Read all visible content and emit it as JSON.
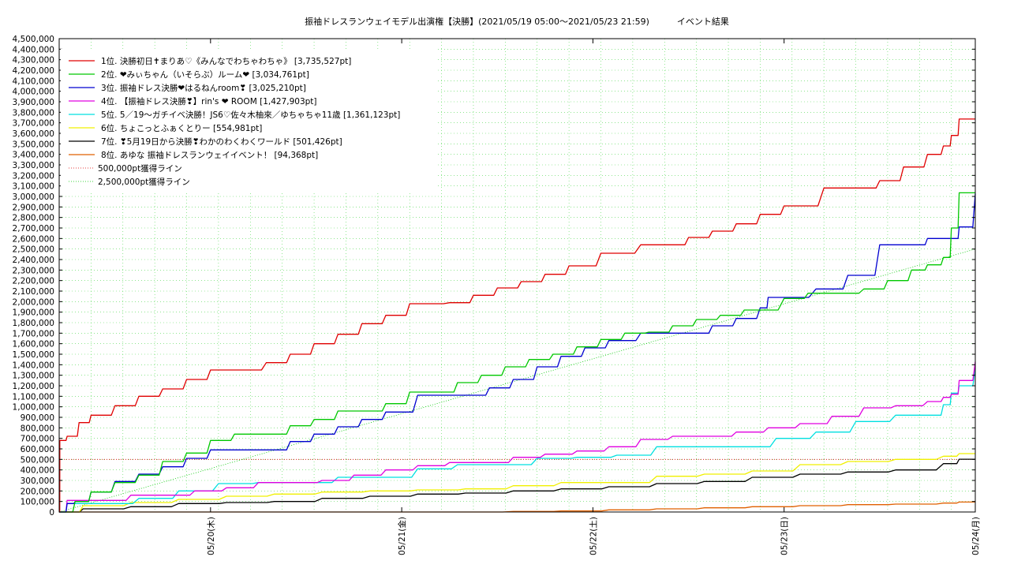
{
  "chart_data": {
    "type": "line",
    "title": "振袖ドレスランウェイモデル出演権【決勝】(2021/05/19 05:00〜2021/05/23 21:59)          イベント結果",
    "xlabel": "",
    "ylabel": "",
    "x_range": [
      "2021/05/19 05:00",
      "2021/05/24 00:00"
    ],
    "ylim": [
      0,
      4500000
    ],
    "y_ticks": [
      "0",
      "100,000",
      "200,000",
      "300,000",
      "400,000",
      "500,000",
      "600,000",
      "700,000",
      "800,000",
      "900,000",
      "1,000,000",
      "1,100,000",
      "1,200,000",
      "1,300,000",
      "1,400,000",
      "1,500,000",
      "1,600,000",
      "1,700,000",
      "1,800,000",
      "1,900,000",
      "2,000,000",
      "2,100,000",
      "2,200,000",
      "2,300,000",
      "2,400,000",
      "2,500,000",
      "2,600,000",
      "2,700,000",
      "2,800,000",
      "2,900,000",
      "3,000,000",
      "3,100,000",
      "3,200,000",
      "3,300,000",
      "3,400,000",
      "3,500,000",
      "3,600,000",
      "3,700,000",
      "3,800,000",
      "3,900,000",
      "4,000,000",
      "4,100,000",
      "4,200,000",
      "4,300,000",
      "4,400,000",
      "4,500,000"
    ],
    "x_ticks": [
      "05/20(木)",
      "05/21(金)",
      "05/22(土)",
      "05/23(日)",
      "05/24(月)"
    ],
    "grid": true,
    "legend_position": "top-left",
    "series": [
      {
        "name": "1位. 決勝初日✝まりあ♡《みんなでわちゃわちゃ》 [3,735,527pt]",
        "color": "#e00000",
        "x": [
          "05/19 05:00",
          "05/19 05:05",
          "05/19 06:00",
          "05/19 07:30",
          "05/19 09:00",
          "05/19 12:00",
          "05/19 15:00",
          "05/19 18:00",
          "05/19 21:00",
          "05/20 00:00",
          "05/20 03:00",
          "05/20 07:00",
          "05/20 10:00",
          "05/20 13:00",
          "05/20 16:00",
          "05/20 19:00",
          "05/20 22:00",
          "05/21 01:00",
          "05/21 06:00",
          "05/21 09:00",
          "05/21 12:00",
          "05/21 15:00",
          "05/21 18:00",
          "05/21 21:00",
          "05/22 01:00",
          "05/22 06:00",
          "05/22 09:00",
          "05/22 12:00",
          "05/22 15:00",
          "05/22 18:00",
          "05/22 21:00",
          "05/23 00:00",
          "05/23 05:00",
          "05/23 09:00",
          "05/23 12:00",
          "05/23 15:00",
          "05/23 18:00",
          "05/23 20:00",
          "05/23 21:00",
          "05/23 21:59",
          "05/24 00:00"
        ],
        "y": [
          0,
          680000,
          720000,
          850000,
          920000,
          1010000,
          1100000,
          1170000,
          1260000,
          1350000,
          1350000,
          1420000,
          1500000,
          1600000,
          1690000,
          1790000,
          1870000,
          1980000,
          1990000,
          2060000,
          2130000,
          2190000,
          2260000,
          2340000,
          2460000,
          2540000,
          2540000,
          2610000,
          2670000,
          2740000,
          2830000,
          2910000,
          3080000,
          3080000,
          3150000,
          3280000,
          3400000,
          3480000,
          3580000,
          3735527,
          3735527
        ]
      },
      {
        "name": "2位. ❤みぃちゃん（いそらぶ）ルーム❤ [3,034,761pt]",
        "color": "#00c800",
        "x": [
          "05/19 05:00",
          "05/19 07:00",
          "05/19 09:00",
          "05/19 12:00",
          "05/19 15:00",
          "05/19 18:00",
          "05/19 21:00",
          "05/20 00:00",
          "05/20 03:00",
          "05/20 07:00",
          "05/20 10:00",
          "05/20 13:00",
          "05/20 16:00",
          "05/20 19:00",
          "05/20 22:00",
          "05/21 01:00",
          "05/21 04:00",
          "05/21 07:00",
          "05/21 10:00",
          "05/21 13:00",
          "05/21 16:00",
          "05/21 19:00",
          "05/21 22:00",
          "05/22 01:00",
          "05/22 04:00",
          "05/22 07:00",
          "05/22 10:00",
          "05/22 13:00",
          "05/22 16:00",
          "05/22 19:00",
          "05/23 00:00",
          "05/23 03:00",
          "05/23 06:00",
          "05/23 10:00",
          "05/23 13:00",
          "05/23 16:00",
          "05/23 18:00",
          "05/23 20:00",
          "05/23 21:00",
          "05/23 21:59",
          "05/24 00:00"
        ],
        "y": [
          0,
          100000,
          190000,
          280000,
          350000,
          480000,
          560000,
          680000,
          740000,
          740000,
          820000,
          880000,
          960000,
          960000,
          1030000,
          1140000,
          1140000,
          1230000,
          1300000,
          1380000,
          1450000,
          1500000,
          1570000,
          1640000,
          1700000,
          1710000,
          1770000,
          1830000,
          1870000,
          1920000,
          2030000,
          2080000,
          2080000,
          2120000,
          2200000,
          2300000,
          2350000,
          2420000,
          2700000,
          3034761,
          3034761
        ]
      },
      {
        "name": "3位. 振袖ドレス決勝❤はるねんroom❣ [3,025,210pt]",
        "color": "#0000d0",
        "x": [
          "05/19 05:00",
          "05/19 06:00",
          "05/19 07:00",
          "05/19 09:00",
          "05/19 12:00",
          "05/19 15:00",
          "05/19 18:00",
          "05/19 21:00",
          "05/20 00:00",
          "05/20 03:00",
          "05/20 07:00",
          "05/20 10:00",
          "05/20 13:00",
          "05/20 16:00",
          "05/20 19:00",
          "05/20 22:00",
          "05/21 02:00",
          "05/21 05:00",
          "05/21 08:00",
          "05/21 11:00",
          "05/21 14:00",
          "05/21 17:00",
          "05/21 20:00",
          "05/21 23:00",
          "05/22 02:00",
          "05/22 06:00",
          "05/22 09:00",
          "05/22 12:00",
          "05/22 15:00",
          "05/22 18:00",
          "05/22 21:00",
          "05/22 22:00",
          "05/23 04:00",
          "05/23 08:00",
          "05/23 12:00",
          "05/23 16:00",
          "05/23 18:00",
          "05/23 20:00",
          "05/23 21:00",
          "05/23 21:59",
          "05/24 00:00"
        ],
        "y": [
          0,
          80000,
          100000,
          190000,
          290000,
          360000,
          430000,
          510000,
          590000,
          590000,
          590000,
          670000,
          740000,
          810000,
          880000,
          950000,
          1110000,
          1110000,
          1110000,
          1180000,
          1260000,
          1380000,
          1480000,
          1560000,
          1630000,
          1700000,
          1700000,
          1700000,
          1770000,
          1840000,
          1940000,
          2040000,
          2120000,
          2250000,
          2540000,
          2540000,
          2600000,
          2600000,
          2600000,
          2710000,
          3025210
        ]
      },
      {
        "name": "4位. 【振袖ドレス決勝❣】rin's ❤ ROOM [1,427,903pt]",
        "color": "#e000e0",
        "x": [
          "05/19 05:00",
          "05/19 06:00",
          "05/19 10:00",
          "05/19 14:00",
          "05/19 18:00",
          "05/19 22:00",
          "05/20 02:00",
          "05/20 06:00",
          "05/20 10:00",
          "05/20 14:00",
          "05/20 18:00",
          "05/20 22:00",
          "05/21 02:00",
          "05/21 06:00",
          "05/21 10:00",
          "05/21 14:00",
          "05/21 18:00",
          "05/21 22:00",
          "05/22 02:00",
          "05/22 06:00",
          "05/22 10:00",
          "05/22 14:00",
          "05/22 18:00",
          "05/22 22:00",
          "05/23 02:00",
          "05/23 06:00",
          "05/23 10:00",
          "05/23 14:00",
          "05/23 18:00",
          "05/23 20:00",
          "05/23 21:00",
          "05/23 21:59",
          "05/24 00:00"
        ],
        "y": [
          0,
          110000,
          110000,
          160000,
          160000,
          200000,
          230000,
          280000,
          280000,
          300000,
          350000,
          400000,
          440000,
          470000,
          470000,
          520000,
          550000,
          580000,
          620000,
          690000,
          720000,
          720000,
          760000,
          800000,
          840000,
          910000,
          990000,
          1010000,
          1050000,
          1090000,
          1120000,
          1250000,
          1427903
        ]
      },
      {
        "name": "5位. 5／19〜ガチイベ決勝！JS6♡佐々木柚來／ゆちゃちゃ11歳 [1,361,123pt]",
        "color": "#00e0e0",
        "x": [
          "05/19 05:00",
          "05/19 06:00",
          "05/19 10:00",
          "05/19 15:00",
          "05/19 20:00",
          "05/20 01:00",
          "05/20 06:00",
          "05/20 11:00",
          "05/20 16:00",
          "05/20 21:00",
          "05/21 02:00",
          "05/21 07:00",
          "05/21 12:00",
          "05/21 17:00",
          "05/21 22:00",
          "05/22 03:00",
          "05/22 08:00",
          "05/22 13:00",
          "05/22 18:00",
          "05/22 23:00",
          "05/23 04:00",
          "05/23 09:00",
          "05/23 14:00",
          "05/23 18:00",
          "05/23 20:00",
          "05/23 21:00",
          "05/23 21:59",
          "05/24 00:00"
        ],
        "y": [
          0,
          80000,
          80000,
          130000,
          200000,
          270000,
          280000,
          280000,
          330000,
          330000,
          410000,
          450000,
          450000,
          510000,
          520000,
          540000,
          620000,
          620000,
          620000,
          700000,
          760000,
          860000,
          920000,
          920000,
          1020000,
          1130000,
          1200000,
          1361123
        ]
      },
      {
        "name": "6位. ちょこっとふぁくとりー [554,981pt]",
        "color": "#f0f000",
        "x": [
          "05/19 05:00",
          "05/19 08:00",
          "05/19 14:00",
          "05/19 20:00",
          "05/20 02:00",
          "05/20 08:00",
          "05/20 14:00",
          "05/20 20:00",
          "05/21 02:00",
          "05/21 08:00",
          "05/21 14:00",
          "05/21 20:00",
          "05/22 02:00",
          "05/22 08:00",
          "05/22 14:00",
          "05/22 20:00",
          "05/23 02:00",
          "05/23 08:00",
          "05/23 14:00",
          "05/23 20:00",
          "05/23 21:59",
          "05/24 00:00"
        ],
        "y": [
          0,
          60000,
          90000,
          120000,
          150000,
          170000,
          190000,
          200000,
          210000,
          220000,
          250000,
          280000,
          280000,
          340000,
          360000,
          390000,
          450000,
          480000,
          500000,
          530000,
          554981,
          554981
        ]
      },
      {
        "name": "7位. ❣5月19日から決勝❣わかのわくわくワールド [501,426pt]",
        "color": "#000000",
        "x": [
          "05/19 05:00",
          "05/19 08:00",
          "05/19 14:00",
          "05/19 20:00",
          "05/20 02:00",
          "05/20 08:00",
          "05/20 14:00",
          "05/20 20:00",
          "05/21 02:00",
          "05/21 08:00",
          "05/21 14:00",
          "05/21 20:00",
          "05/22 02:00",
          "05/22 08:00",
          "05/22 14:00",
          "05/22 20:00",
          "05/23 02:00",
          "05/23 08:00",
          "05/23 14:00",
          "05/23 20:00",
          "05/23 21:59",
          "05/24 00:00"
        ],
        "y": [
          0,
          30000,
          50000,
          80000,
          90000,
          100000,
          130000,
          150000,
          170000,
          180000,
          200000,
          220000,
          240000,
          270000,
          290000,
          330000,
          360000,
          380000,
          400000,
          460000,
          501426,
          501426
        ]
      },
      {
        "name": "8位. あゆな 振袖ドレスランウェイイベント！ [94,368pt]",
        "color": "#e06000",
        "x": [
          "05/19 05:00",
          "05/21 05:00",
          "05/21 14:00",
          "05/21 20:00",
          "05/22 02:00",
          "05/22 08:00",
          "05/22 14:00",
          "05/22 20:00",
          "05/23 02:00",
          "05/23 08:00",
          "05/23 14:00",
          "05/23 20:00",
          "05/23 21:59",
          "05/24 00:00"
        ],
        "y": [
          0,
          0,
          5000,
          10000,
          20000,
          30000,
          40000,
          50000,
          60000,
          70000,
          75000,
          85000,
          94368,
          94368
        ]
      }
    ],
    "reference_lines": [
      {
        "name": "500,000pt獲得ライン",
        "y": 500000,
        "color": "#e00000",
        "style": "dotted"
      },
      {
        "name": "2,500,000pt獲得ライン",
        "y_start": 0,
        "y_end": 2500000,
        "color": "#00c800",
        "style": "dotted"
      }
    ]
  }
}
